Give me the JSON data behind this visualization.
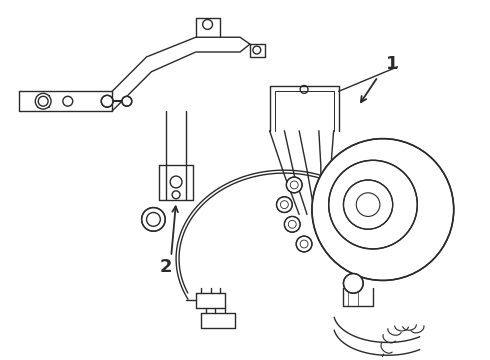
{
  "background_color": "#ffffff",
  "line_color": "#2a2a2a",
  "label1_text": "1",
  "label2_text": "2",
  "fig_width": 4.9,
  "fig_height": 3.6,
  "dpi": 100
}
